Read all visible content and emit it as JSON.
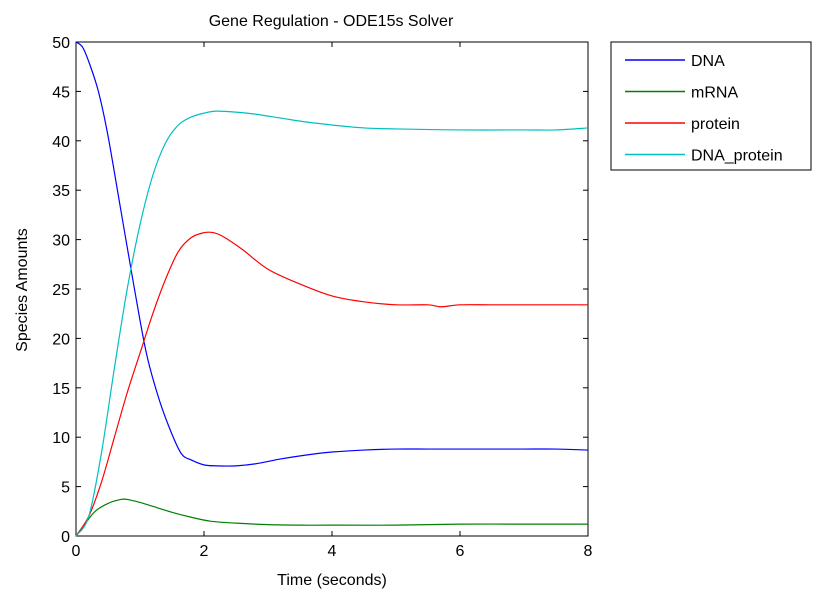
{
  "chart_data": {
    "type": "line",
    "title": "Gene Regulation - ODE15s Solver",
    "xlabel": "Time (seconds)",
    "ylabel": "Species Amounts",
    "xlim": [
      0,
      8
    ],
    "ylim": [
      0,
      50
    ],
    "xticks": [
      "0",
      "2",
      "4",
      "6",
      "8"
    ],
    "yticks": [
      "0",
      "5",
      "10",
      "15",
      "20",
      "25",
      "30",
      "35",
      "40",
      "45",
      "50"
    ],
    "grid": false,
    "legend_position": "outside-top-right",
    "series": [
      {
        "name": "DNA",
        "color": "#0000ff",
        "x": [
          0,
          0.1,
          0.2,
          0.35,
          0.5,
          0.7,
          0.9,
          1.1,
          1.3,
          1.5,
          1.65,
          1.8,
          2.0,
          2.2,
          2.5,
          2.8,
          3.2,
          3.6,
          4.0,
          4.5,
          5.0,
          5.5,
          6.0,
          6.5,
          7.0,
          7.5,
          8.0
        ],
        "y": [
          50,
          49.5,
          48,
          45,
          40.5,
          33,
          25.5,
          18.5,
          13.8,
          10.3,
          8.3,
          7.7,
          7.2,
          7.1,
          7.1,
          7.3,
          7.8,
          8.2,
          8.5,
          8.7,
          8.8,
          8.8,
          8.8,
          8.8,
          8.8,
          8.8,
          8.7
        ]
      },
      {
        "name": "mRNA",
        "color": "#008000",
        "x": [
          0,
          0.15,
          0.3,
          0.5,
          0.7,
          0.8,
          1.0,
          1.2,
          1.5,
          1.8,
          2.1,
          2.5,
          3.0,
          3.5,
          4.0,
          5.0,
          6.0,
          7.0,
          8.0
        ],
        "y": [
          0,
          1.3,
          2.5,
          3.3,
          3.7,
          3.7,
          3.4,
          3.0,
          2.4,
          1.9,
          1.5,
          1.3,
          1.15,
          1.1,
          1.1,
          1.1,
          1.2,
          1.2,
          1.2
        ]
      },
      {
        "name": "protein",
        "color": "#ff0000",
        "x": [
          0,
          0.2,
          0.4,
          0.6,
          0.8,
          1.0,
          1.2,
          1.4,
          1.6,
          1.8,
          2.0,
          2.15,
          2.3,
          2.6,
          3.0,
          3.5,
          4.0,
          4.5,
          5.0,
          5.5,
          5.7,
          6.0,
          6.5,
          7.0,
          8.0
        ],
        "y": [
          0,
          2.0,
          5.5,
          10,
          14.5,
          18.5,
          22.5,
          26,
          28.8,
          30.2,
          30.7,
          30.7,
          30.3,
          29,
          27,
          25.5,
          24.3,
          23.7,
          23.4,
          23.4,
          23.2,
          23.4,
          23.4,
          23.4,
          23.4
        ]
      },
      {
        "name": "DNA_protein",
        "color": "#00bfbf",
        "x": [
          0,
          0.2,
          0.4,
          0.6,
          0.8,
          1.0,
          1.2,
          1.4,
          1.6,
          1.8,
          2.0,
          2.2,
          2.5,
          2.8,
          3.2,
          3.6,
          4.0,
          4.5,
          5.0,
          6.0,
          7.0,
          7.5,
          8.0
        ],
        "y": [
          0,
          2.0,
          8.5,
          17,
          25,
          31.5,
          36.5,
          39.8,
          41.6,
          42.4,
          42.8,
          43,
          42.9,
          42.7,
          42.3,
          41.9,
          41.6,
          41.3,
          41.2,
          41.1,
          41.1,
          41.1,
          41.3
        ]
      }
    ]
  }
}
